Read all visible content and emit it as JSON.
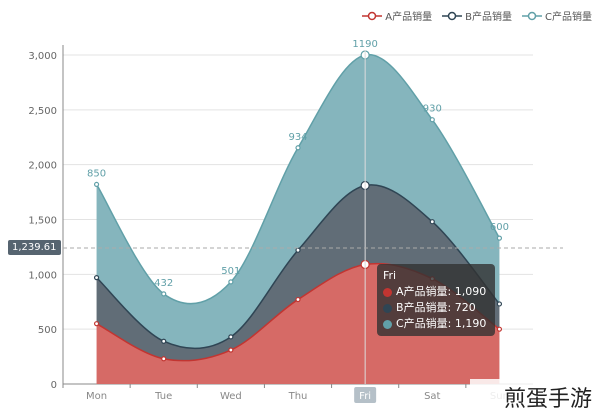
{
  "chart_data": {
    "type": "area",
    "categories": [
      "Mon",
      "Tue",
      "Wed",
      "Thu",
      "Fri",
      "Sat",
      "Sun"
    ],
    "series": [
      {
        "name": "A产品销量",
        "values": [
          550,
          230,
          310,
          770,
          1090,
          960,
          500
        ],
        "color": "#c23531",
        "fill": "#d66a66"
      },
      {
        "name": "B产品销量",
        "values": [
          420,
          160,
          120,
          450,
          720,
          520,
          230
        ],
        "color": "#2f4554",
        "fill": "#616d77"
      },
      {
        "name": "C产品销量",
        "values": [
          850,
          432,
          501,
          934,
          1190,
          930,
          600
        ],
        "color": "#61a0a8",
        "fill": "#85b5bd"
      }
    ],
    "point_labels": [
      "850",
      "432",
      "501",
      "934",
      "1190",
      "930",
      "600"
    ],
    "yticks": [
      0,
      500,
      1000,
      1500,
      2000,
      2500,
      3000
    ],
    "ytick_labels": [
      "0",
      "500",
      "1,000",
      "1,500",
      "2,000",
      "2,500",
      "3,000"
    ],
    "ylim": [
      0,
      3000
    ],
    "stacked": true,
    "smooth": true,
    "grid": true,
    "legend_position": "top-right",
    "pointer": {
      "value": 1239.61,
      "label": "1,239.61",
      "category_index": 4
    }
  },
  "tooltip": {
    "title": "Fri",
    "rows": [
      {
        "label": "A产品销量: 1,090",
        "color": "#c23531"
      },
      {
        "label": "B产品销量: 720",
        "color": "#2f4554"
      },
      {
        "label": "C产品销量: 1,190",
        "color": "#61a0a8"
      }
    ]
  },
  "watermark": "煎蛋手游"
}
